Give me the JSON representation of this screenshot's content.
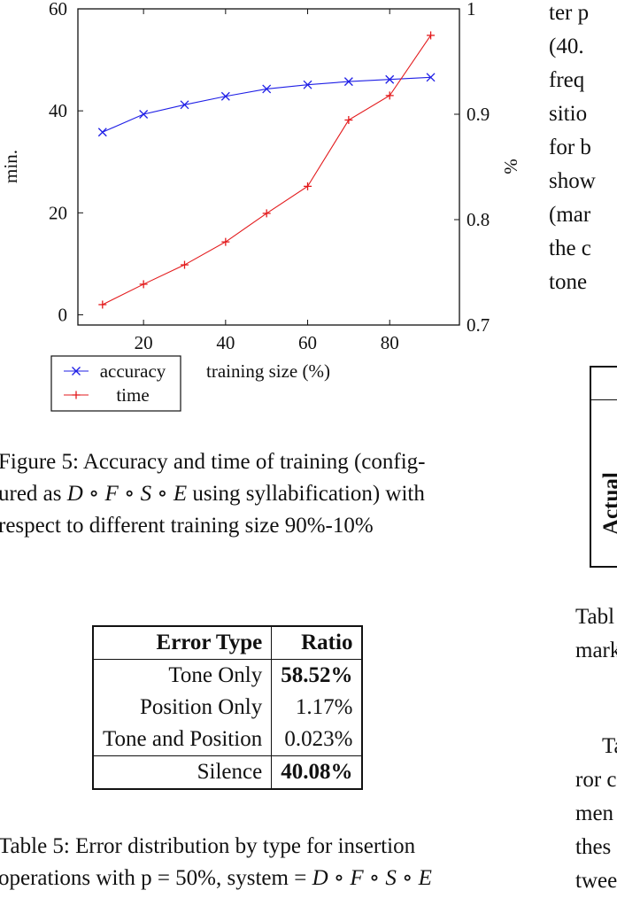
{
  "chart_data": {
    "type": "line",
    "xlabel": "training size (%)",
    "ylabel_left": "min.",
    "ylabel_right": "%",
    "x_ticks": [
      20,
      40,
      60,
      80
    ],
    "y_left_ticks": [
      0,
      20,
      40,
      60
    ],
    "y_right_ticks": [
      "0.7",
      "0.8",
      "0.9",
      "1"
    ],
    "xlim": [
      4,
      97
    ],
    "ylim_left": [
      -2,
      60
    ],
    "ylim_right": [
      0.7,
      1.0
    ],
    "grid": false,
    "legend_position": "bottom-left, outside",
    "series": [
      {
        "name": "accuracy",
        "axis": "right",
        "color": "#1f1fe6",
        "marker": "x",
        "x": [
          10,
          20,
          30,
          40,
          50,
          60,
          70,
          80,
          90
        ],
        "y": [
          0.883,
          0.9,
          0.909,
          0.917,
          0.924,
          0.928,
          0.931,
          0.933,
          0.935
        ]
      },
      {
        "name": "time",
        "axis": "left",
        "color": "#e31a1c",
        "marker": "+",
        "x": [
          10,
          20,
          30,
          40,
          50,
          60,
          70,
          80,
          90
        ],
        "y": [
          2.0,
          6.0,
          9.8,
          14.3,
          19.9,
          25.2,
          38.2,
          43.0,
          54.8
        ]
      }
    ]
  },
  "figure5_caption": {
    "line1": "Figure 5:   Accuracy and time of training (config-",
    "line2_pre": "ured as ",
    "line2_math": "D ∘ F ∘ S ∘ E",
    "line2_post": " using syllabification) with",
    "line3": "respect to different training size 90%-10%"
  },
  "table5": {
    "headers": [
      "Error Type",
      "Ratio"
    ],
    "rows": [
      {
        "type": "Tone Only",
        "ratio": "58.52%"
      },
      {
        "type": "Position Only",
        "ratio": "1.17%"
      },
      {
        "type": "Tone and Position",
        "ratio": "0.023%"
      },
      {
        "type": "Silence",
        "ratio": "40.08%"
      }
    ]
  },
  "table5_caption": {
    "line1": "Table 5:   Error distribution by type for insertion",
    "line2_pre": "operations with p = 50%, system = ",
    "line2_math": "D ∘ F ∘ S ∘ E"
  },
  "right_column": {
    "lines_top": [
      "ter p",
      "(40.",
      "freq",
      "sitio",
      "for b",
      "show",
      "(mar",
      "the c",
      "tone"
    ],
    "matrix_label": "Actual",
    "lines_mid": [
      "Tabl",
      "mark"
    ],
    "lines_bottom": [
      "Ta",
      "ror c",
      "men",
      "thes",
      "twee"
    ]
  }
}
